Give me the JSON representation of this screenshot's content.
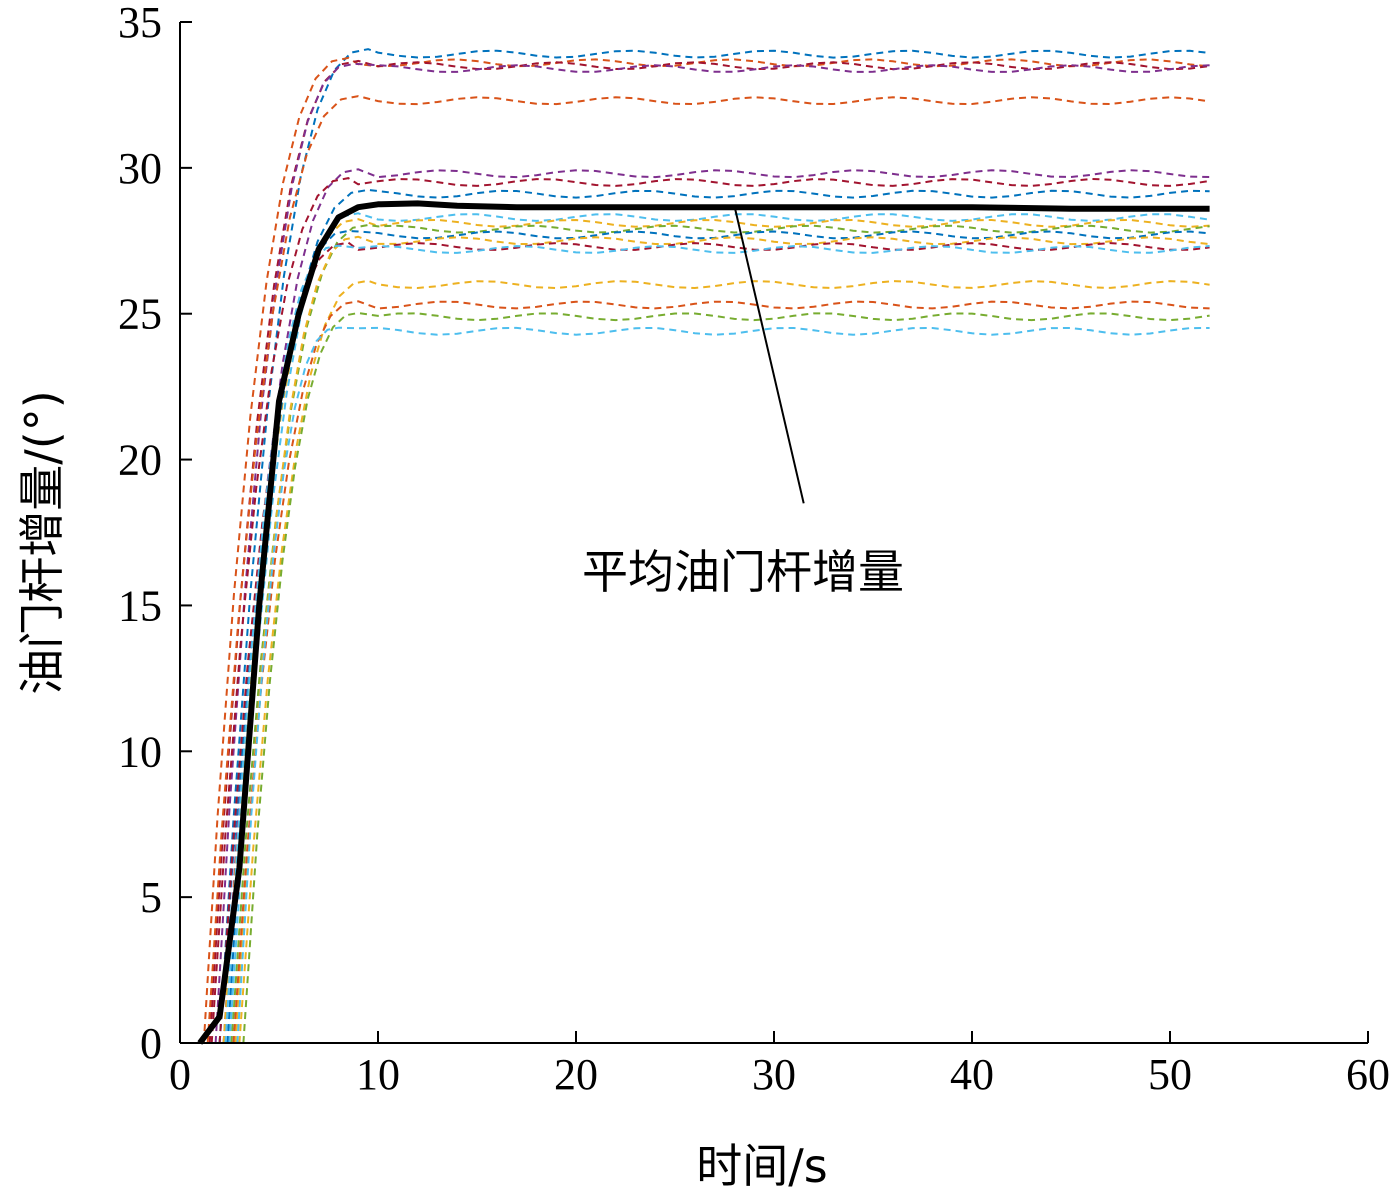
{
  "chart_data": {
    "type": "line",
    "xlabel": "时间/s",
    "ylabel": "油门杆增量/(°)",
    "xlim": [
      0,
      60
    ],
    "ylim": [
      0,
      35
    ],
    "xticks": [
      "0",
      "10",
      "20",
      "30",
      "40",
      "50",
      "60"
    ],
    "yticks": [
      "0",
      "5",
      "10",
      "15",
      "20",
      "25",
      "30",
      "35"
    ],
    "grid": false,
    "annotation": {
      "text": "平均油门杆增量",
      "points_to": [
        28,
        28.7
      ],
      "label_at": [
        31.5,
        18.5
      ]
    },
    "mean_series": {
      "name": "平均油门杆增量",
      "color": "#000000",
      "x": [
        1,
        2,
        3,
        4,
        5,
        6,
        7,
        8,
        9,
        10,
        12,
        14,
        17,
        20,
        25,
        30,
        35,
        40,
        45,
        52
      ],
      "y": [
        0,
        0.9,
        6,
        15,
        22,
        25,
        27.2,
        28.3,
        28.65,
        28.75,
        28.78,
        28.7,
        28.65,
        28.65,
        28.65,
        28.65,
        28.65,
        28.65,
        28.6,
        28.6
      ]
    },
    "run_series": [
      {
        "color": "#0072BD",
        "start": 2.0,
        "rise_end": 9.5,
        "final": 33.9
      },
      {
        "color": "#D95319",
        "start": 1.2,
        "rise_end": 8.5,
        "final": 33.6
      },
      {
        "color": "#A2142F",
        "start": 1.5,
        "rise_end": 9.0,
        "final": 33.5
      },
      {
        "color": "#7E2F8E",
        "start": 1.8,
        "rise_end": 8.8,
        "final": 33.4
      },
      {
        "color": "#D95319",
        "start": 1.4,
        "rise_end": 9.0,
        "final": 32.3
      },
      {
        "color": "#7E2F8E",
        "start": 2.2,
        "rise_end": 9.0,
        "final": 29.8
      },
      {
        "color": "#A2142F",
        "start": 1.6,
        "rise_end": 8.5,
        "final": 29.5
      },
      {
        "color": "#0072BD",
        "start": 2.0,
        "rise_end": 9.5,
        "final": 29.1
      },
      {
        "color": "#4DBEEE",
        "start": 2.5,
        "rise_end": 9.0,
        "final": 28.3
      },
      {
        "color": "#EDB120",
        "start": 2.2,
        "rise_end": 9.0,
        "final": 28.1
      },
      {
        "color": "#77AC30",
        "start": 2.6,
        "rise_end": 9.5,
        "final": 27.9
      },
      {
        "color": "#0072BD",
        "start": 2.4,
        "rise_end": 8.5,
        "final": 27.7
      },
      {
        "color": "#EDB120",
        "start": 2.8,
        "rise_end": 9.0,
        "final": 27.5
      },
      {
        "color": "#A2142F",
        "start": 2.0,
        "rise_end": 8.5,
        "final": 27.3
      },
      {
        "color": "#4DBEEE",
        "start": 2.3,
        "rise_end": 8.0,
        "final": 27.2
      },
      {
        "color": "#EDB120",
        "start": 3.0,
        "rise_end": 9.5,
        "final": 26.0
      },
      {
        "color": "#D95319",
        "start": 2.7,
        "rise_end": 9.0,
        "final": 25.3
      },
      {
        "color": "#77AC30",
        "start": 3.2,
        "rise_end": 9.0,
        "final": 24.9
      },
      {
        "color": "#4DBEEE",
        "start": 2.9,
        "rise_end": 8.0,
        "final": 24.4
      }
    ],
    "run_end_x": 52
  }
}
